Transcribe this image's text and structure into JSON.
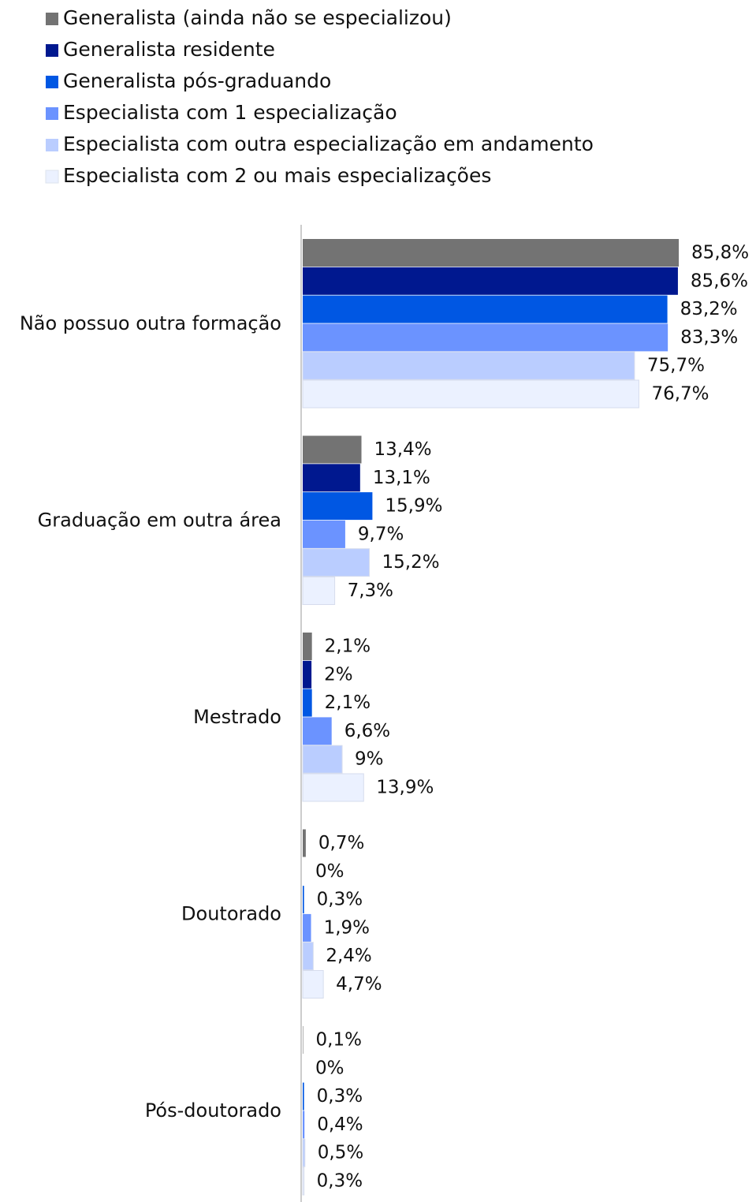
{
  "chart_data": {
    "type": "bar",
    "orientation": "horizontal",
    "categories": [
      "Não possuo outra formação",
      "Graduação em outra área",
      "Mestrado",
      "Doutorado",
      "Pós-doutorado"
    ],
    "series": [
      {
        "name": "Generalista (ainda não se especializou)",
        "color": "#737373",
        "values": [
          85.8,
          13.4,
          2.1,
          0.7,
          0.1
        ],
        "value_labels": [
          "85,8%",
          "13,4%",
          "2,1%",
          "0,7%",
          "0,1%"
        ]
      },
      {
        "name": "Generalista residente",
        "color": "#00188f",
        "values": [
          85.6,
          13.1,
          2,
          0,
          0
        ],
        "value_labels": [
          "85,6%",
          "13,1%",
          "2%",
          "0%",
          "0%"
        ]
      },
      {
        "name": "Generalista pós-graduando",
        "color": "#0057e3",
        "values": [
          83.2,
          15.9,
          2.1,
          0.3,
          0.3
        ],
        "value_labels": [
          "83,2%",
          "15,9%",
          "2,1%",
          "0,3%",
          "0,3%"
        ]
      },
      {
        "name": "Especialista com 1 especialização",
        "color": "#6b93ff",
        "values": [
          83.3,
          9.7,
          6.6,
          1.9,
          0.4
        ],
        "value_labels": [
          "83,3%",
          "9,7%",
          "6,6%",
          "1,9%",
          "0,4%"
        ]
      },
      {
        "name": "Especialista com outra especialização em andamento",
        "color": "#bacdff",
        "values": [
          75.7,
          15.2,
          9,
          2.4,
          0.5
        ],
        "value_labels": [
          "75,7%",
          "15,2%",
          "9%",
          "2,4%",
          "0,5%"
        ]
      },
      {
        "name": "Especialista com 2 ou mais especializações",
        "color": "#ebf1ff",
        "values": [
          76.7,
          7.3,
          13.9,
          4.7,
          0.3
        ],
        "value_labels": [
          "76,7%",
          "7,3%",
          "13,9%",
          "4,7%",
          "0,3%"
        ]
      }
    ],
    "xlim": [
      0,
      100
    ]
  }
}
